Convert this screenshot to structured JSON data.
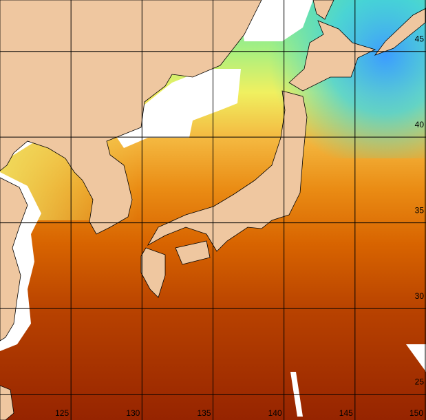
{
  "map": {
    "lonlim": [
      120,
      150
    ],
    "latlim": [
      23.5,
      48
    ],
    "lon_ticks": [
      125,
      130,
      135,
      140,
      145,
      150
    ],
    "lat_ticks": [
      45,
      40,
      35,
      30,
      25
    ]
  }
}
